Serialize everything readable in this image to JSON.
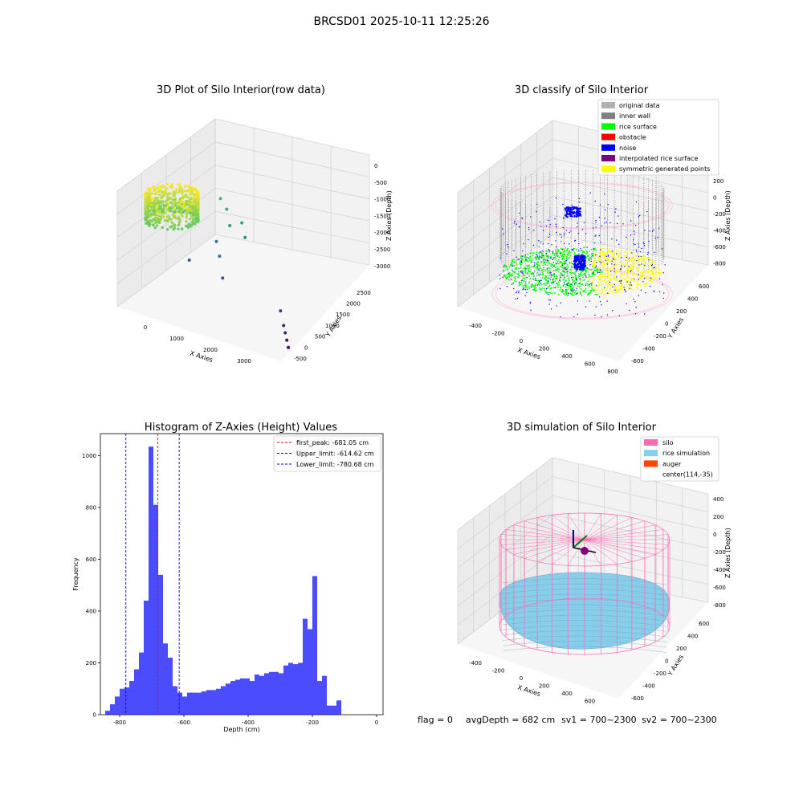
{
  "figure": {
    "suptitle": "BRCSD01 2025-10-11 12:25:26",
    "footer": {
      "flag": "flag = 0",
      "avg": "avgDepth = 682 cm",
      "sv1": "sv1 = 700~2300",
      "sv2": "sv2 = 700~2300"
    }
  },
  "chart_data": [
    {
      "type": "scatter",
      "projection": "3d",
      "title": "3D Plot of Silo Interior(row data)",
      "xlabel": "X Axies",
      "ylabel": "Y Axies",
      "zlabel": "Z Axies (Depth)",
      "xticks": [
        "0",
        "1000",
        "2000",
        "3000"
      ],
      "yticks": [
        "-500",
        "0",
        "500",
        "1000",
        "1500",
        "2000",
        "2500"
      ],
      "zticks": [
        "0",
        "-500",
        "-1000",
        "-1500",
        "-2000",
        "-2500",
        "-3000"
      ],
      "colormap": "viridis",
      "main_cluster": {
        "x_range": [
          -200,
          300
        ],
        "y_range": [
          1500,
          2300
        ],
        "z_range": [
          -1200,
          -800
        ]
      },
      "outliers": [
        {
          "x": 700,
          "y": 1500,
          "z": -1100
        },
        {
          "x": 900,
          "y": 1400,
          "z": -1250
        },
        {
          "x": 1100,
          "y": 1200,
          "z": -1500
        },
        {
          "x": 1300,
          "y": 1300,
          "z": -1400
        },
        {
          "x": 1500,
          "y": 1100,
          "z": -1600
        },
        {
          "x": 1000,
          "y": 900,
          "z": -1800
        },
        {
          "x": 1200,
          "y": 700,
          "z": -2000
        },
        {
          "x": 600,
          "y": 600,
          "z": -2300
        },
        {
          "x": 1400,
          "y": 500,
          "z": -2400
        },
        {
          "x": 2800,
          "y": 300,
          "z": -2600
        },
        {
          "x": 3000,
          "y": 100,
          "z": -2800
        },
        {
          "x": 3100,
          "y": 0,
          "z": -2900
        },
        {
          "x": 3200,
          "y": -100,
          "z": -3000
        },
        {
          "x": 3300,
          "y": -200,
          "z": -3100
        }
      ]
    },
    {
      "type": "scatter",
      "projection": "3d",
      "title": "3D classify of Silo Interior",
      "xlabel": "X Axies",
      "ylabel": "Y Axies",
      "zlabel": "Z Axies (Depth)",
      "xticks": [
        "-400",
        "-200",
        "0",
        "200",
        "400",
        "600",
        "800"
      ],
      "yticks": [
        "-600",
        "-400",
        "-200",
        "0",
        "200",
        "400",
        "600"
      ],
      "zticks": [
        "200",
        "0",
        "-200",
        "-400",
        "-600",
        "-800"
      ],
      "legend": [
        {
          "label": "original data",
          "color": "#b0b0b0"
        },
        {
          "label": "inner wall",
          "color": "#808080"
        },
        {
          "label": "rice surface",
          "color": "#00ff00"
        },
        {
          "label": "obstacle",
          "color": "#ff0000"
        },
        {
          "label": "noise",
          "color": "#0000ff"
        },
        {
          "label": "interpolated rice surface",
          "color": "#800080"
        },
        {
          "label": "symmetric generated points",
          "color": "#ffff00"
        }
      ],
      "legend_loc": "upper right"
    },
    {
      "type": "bar",
      "title": "Histogram of Z-Axies (Height) Values",
      "xlabel": "Depth (cm)",
      "ylabel": "Frequency",
      "xlim": [
        -860,
        20
      ],
      "ylim": [
        0,
        1085
      ],
      "xticks": [
        -800,
        -600,
        -400,
        -200,
        0
      ],
      "yticks": [
        0,
        200,
        400,
        600,
        800,
        1000
      ],
      "bin_start": -845,
      "bin_width": 15,
      "values": [
        15,
        40,
        70,
        100,
        105,
        130,
        175,
        240,
        440,
        1035,
        810,
        540,
        275,
        220,
        110,
        85,
        70,
        85,
        85,
        85,
        90,
        95,
        95,
        100,
        110,
        120,
        130,
        135,
        140,
        140,
        130,
        155,
        150,
        160,
        165,
        165,
        160,
        190,
        200,
        195,
        200,
        370,
        330,
        535,
        130,
        150,
        35,
        35,
        55
      ],
      "bar_color": "#0000ff",
      "reference_lines": [
        {
          "label": "first_peak: -681.05 cm",
          "x": -681.05,
          "color": "#ff0000"
        },
        {
          "label": "Upper_limit: -614.62 cm",
          "x": -614.62,
          "color": "#0000ff"
        },
        {
          "label": "Lower_limit: -780.68 cm",
          "x": -780.68,
          "color": "#0000ff"
        }
      ],
      "legend_loc": "upper right"
    },
    {
      "type": "surface",
      "projection": "3d",
      "title": "3D simulation of Silo Interior",
      "xlabel": "X Axies",
      "ylabel": "Y Axies",
      "zlabel": "Z Axies (Depth)",
      "xticks": [
        "-400",
        "-200",
        "0",
        "200",
        "400",
        "600"
      ],
      "yticks": [
        "-600",
        "-400",
        "-200",
        "0",
        "200",
        "400",
        "600"
      ],
      "zticks": [
        "400",
        "200",
        "0",
        "-200",
        "-400",
        "-600",
        "-800"
      ],
      "legend": [
        {
          "label": "silo",
          "color": "#ff69b4"
        },
        {
          "label": "rice simulation",
          "color": "#87ceeb"
        },
        {
          "label": "auger",
          "color": "#ff4500"
        },
        {
          "label": "center(114,-35)",
          "color": ""
        }
      ],
      "legend_loc": "upper right"
    }
  ]
}
